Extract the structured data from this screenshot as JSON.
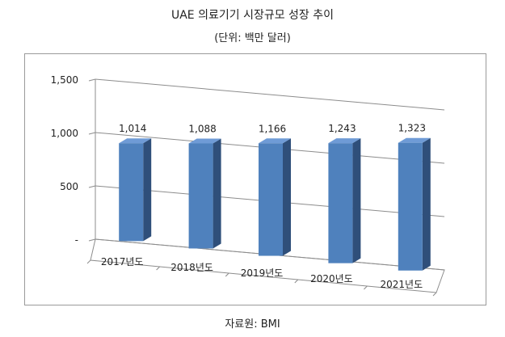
{
  "chart_data": {
    "type": "bar",
    "title": "UAE 의료기기 시장규모 성장 추이",
    "subtitle": "(단위: 백만 달러)",
    "source": "자료원: BMI",
    "categories": [
      "2017년도",
      "2018년도",
      "2019년도",
      "2020년도",
      "2021년도"
    ],
    "values": [
      1014,
      1088,
      1166,
      1243,
      1323
    ],
    "value_labels": [
      "1,014",
      "1,088",
      "1,166",
      "1,243",
      "1,323"
    ],
    "ylim": [
      0,
      1500
    ],
    "yticks": [
      {
        "value": 0,
        "label": "-"
      },
      {
        "value": 500,
        "label": "500"
      },
      {
        "value": 1000,
        "label": "1,000"
      },
      {
        "value": 1500,
        "label": "1,500"
      }
    ],
    "grid": true,
    "legend": "none",
    "colors": {
      "bar_front": "#4f81bd",
      "bar_side": "#2f4f7a",
      "bar_top": "#6f9bd6",
      "grid": "#8c8c8c"
    }
  }
}
